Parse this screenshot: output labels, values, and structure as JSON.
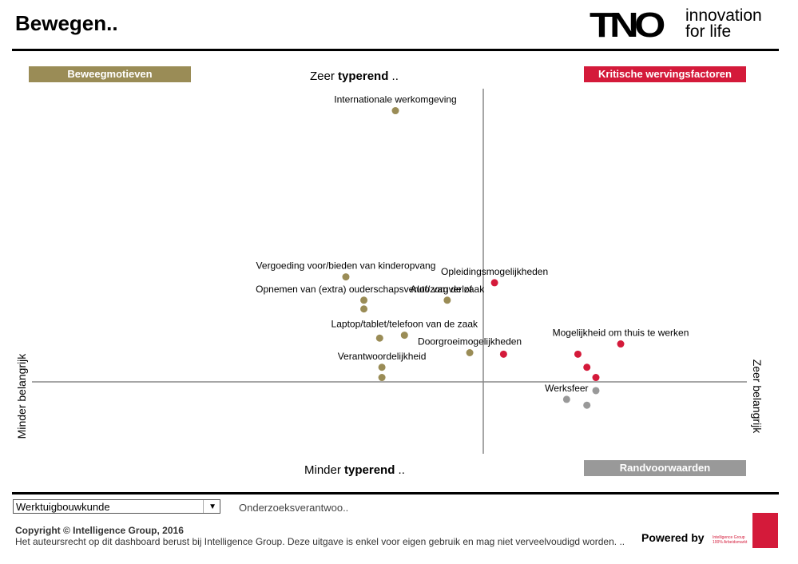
{
  "title": "Bewegen..",
  "logo": {
    "brand": "TNO",
    "tagline_line1": "innovation",
    "tagline_line2": "for life"
  },
  "badges": {
    "beweegmotieven": "Beweegmotieven",
    "kritische": "Kritische wervingsfactoren",
    "randvoorwaarden": "Randvoorwaarden"
  },
  "axes": {
    "top_prefix": "Zeer ",
    "top_bold": "typerend",
    "top_suffix": " ..",
    "bottom_prefix": "Minder ",
    "bottom_bold": "typerend",
    "bottom_suffix": " ..",
    "left": "Minder belangrijk",
    "right": "Zeer belangrijk"
  },
  "colors": {
    "olive": "#9a8c56",
    "red": "#d41a3a",
    "grey": "#999999"
  },
  "chart_data": {
    "type": "scatter",
    "xlim": [
      -10,
      10
    ],
    "ylim": [
      -10,
      10
    ],
    "points": [
      {
        "label": "Internationale werkomgeving",
        "x": -3.9,
        "y": 9.3,
        "group": "olive"
      },
      {
        "label": "Vergoeding voor/bieden van kinderopvang",
        "x": -6.1,
        "y": 3.6,
        "group": "olive"
      },
      {
        "label": "Opnemen van (extra) ouderschapsverlof/zorgverlof",
        "x": -5.3,
        "y": 2.8,
        "group": "olive"
      },
      {
        "label": "",
        "x": -5.3,
        "y": 2.5,
        "group": "olive"
      },
      {
        "label": "Auto van de zaak",
        "x": -1.6,
        "y": 2.8,
        "group": "olive"
      },
      {
        "label": "Laptop/tablet/telefoon van de zaak",
        "x": -3.5,
        "y": 1.6,
        "group": "olive"
      },
      {
        "label": "",
        "x": -4.6,
        "y": 1.5,
        "group": "olive"
      },
      {
        "label": "Doorgroeimogelijkheden",
        "x": -0.6,
        "y": 1.0,
        "group": "olive"
      },
      {
        "label": "Verantwoordelijkheid",
        "x": -4.5,
        "y": 0.5,
        "group": "olive"
      },
      {
        "label": "",
        "x": -4.5,
        "y": 0.15,
        "group": "olive"
      },
      {
        "label": "Opleidingsmogelijkheden",
        "x": 0.5,
        "y": 3.4,
        "group": "red"
      },
      {
        "label": "",
        "x": 0.9,
        "y": 0.95,
        "group": "red"
      },
      {
        "label": "Mogelijkheid om thuis te werken",
        "x": 6.1,
        "y": 1.3,
        "group": "red"
      },
      {
        "label": "",
        "x": 4.2,
        "y": 0.95,
        "group": "red"
      },
      {
        "label": "",
        "x": 4.6,
        "y": 0.5,
        "group": "red"
      },
      {
        "label": "",
        "x": 5.0,
        "y": 0.15,
        "group": "red"
      },
      {
        "label": "Werksfeer",
        "x": 3.7,
        "y": -0.6,
        "group": "grey"
      },
      {
        "label": "",
        "x": 5.0,
        "y": -0.3,
        "group": "grey"
      },
      {
        "label": "",
        "x": 4.6,
        "y": -0.8,
        "group": "grey"
      }
    ]
  },
  "filter": {
    "selected": "Werktuigbouwkunde",
    "second": "Onderzoeksverantwoo.."
  },
  "footer": {
    "copyright": "Copyright © Intelligence Group, 2016",
    "disclaimer": "Het auteursrecht op dit dashboard berust bij Intelligence Group. Deze uitgave is enkel voor eigen gebruik en mag niet verveelvoudigd worden. ..",
    "powered": "Powered by",
    "ig_name": "Intelligence Group",
    "ig_sub": "100% Arbeidsmarkt",
    "ig_logo": "iG!"
  }
}
